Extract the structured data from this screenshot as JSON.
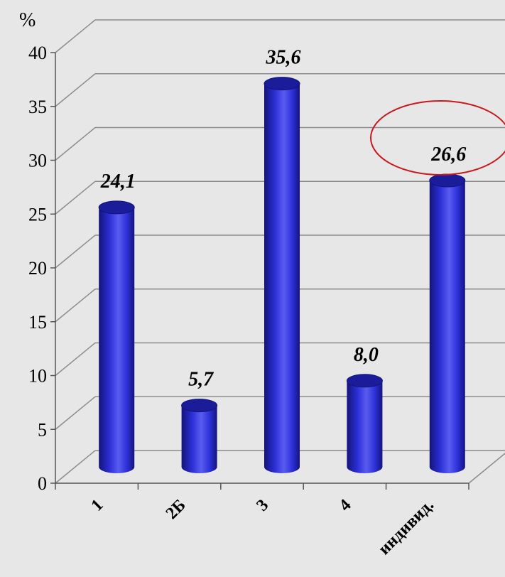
{
  "chart_data": {
    "type": "bar",
    "ylabel": "%",
    "categories": [
      "1",
      "2Б",
      "3",
      "4",
      "индивид."
    ],
    "values": [
      24.1,
      5.7,
      35.6,
      8.0,
      26.6
    ],
    "data_labels": [
      "24,1",
      "5,7",
      "35,6",
      "8,0",
      "26,6"
    ],
    "ylim": [
      0,
      40
    ],
    "yticks": [
      "0",
      "5",
      "10",
      "15",
      "20",
      "25",
      "30",
      "35",
      "40"
    ],
    "grid": true,
    "highlighted_category": "индивид.",
    "colors": {
      "bar": "#2b2fd6",
      "bar_light": "#5a5cf0",
      "bar_dark": "#14147a",
      "bar_top": "#1a1c9a",
      "highlight_ring": "#c8191e",
      "grid": "#8c8c8c",
      "background": "#e7e7e7"
    }
  }
}
